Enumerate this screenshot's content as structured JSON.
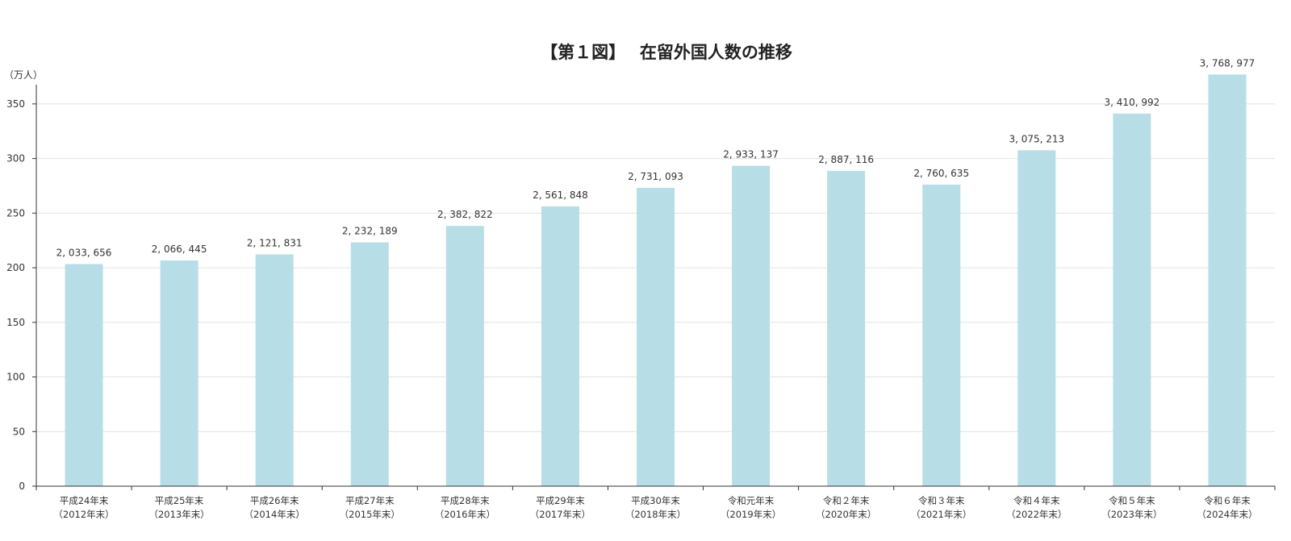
{
  "chart_data": {
    "type": "bar",
    "title": "【第１図】　 在留外国人数の推移",
    "y_unit_label": "（万人）",
    "yticks": [
      0,
      50,
      100,
      150,
      200,
      250,
      300,
      350
    ],
    "ylim": [
      0,
      375
    ],
    "grid": true,
    "bar_color": "#b7dde6",
    "categories": [
      [
        "平成24年末",
        "（2012年末）"
      ],
      [
        "平成25年末",
        "（2013年末）"
      ],
      [
        "平成26年末",
        "（2014年末）"
      ],
      [
        "平成27年末",
        "（2015年末）"
      ],
      [
        "平成28年末",
        "（2016年末）"
      ],
      [
        "平成29年末",
        "（2017年末）"
      ],
      [
        "平成30年末",
        "（2018年末）"
      ],
      [
        "令和元年末",
        "（2019年末）"
      ],
      [
        "令和２年末",
        "（2020年末）"
      ],
      [
        "令和３年末",
        "（2021年末）"
      ],
      [
        "令和４年末",
        "（2022年末）"
      ],
      [
        "令和５年末",
        "（2023年末）"
      ],
      [
        "令和６年末",
        "（2024年末）"
      ]
    ],
    "values": [
      2033656,
      2066445,
      2121831,
      2232189,
      2382822,
      2561848,
      2731093,
      2933137,
      2887116,
      2760635,
      3075213,
      3410992,
      3768977
    ],
    "data_labels": [
      "2, 033, 656",
      "2, 066, 445",
      "2, 121, 831",
      "2, 232, 189",
      "2, 382, 822",
      "2, 561, 848",
      "2, 731, 093",
      "2, 933, 137",
      "2, 887, 116",
      "2, 760, 635",
      "3, 075, 213",
      "3, 410, 992",
      "3, 768, 977"
    ]
  }
}
